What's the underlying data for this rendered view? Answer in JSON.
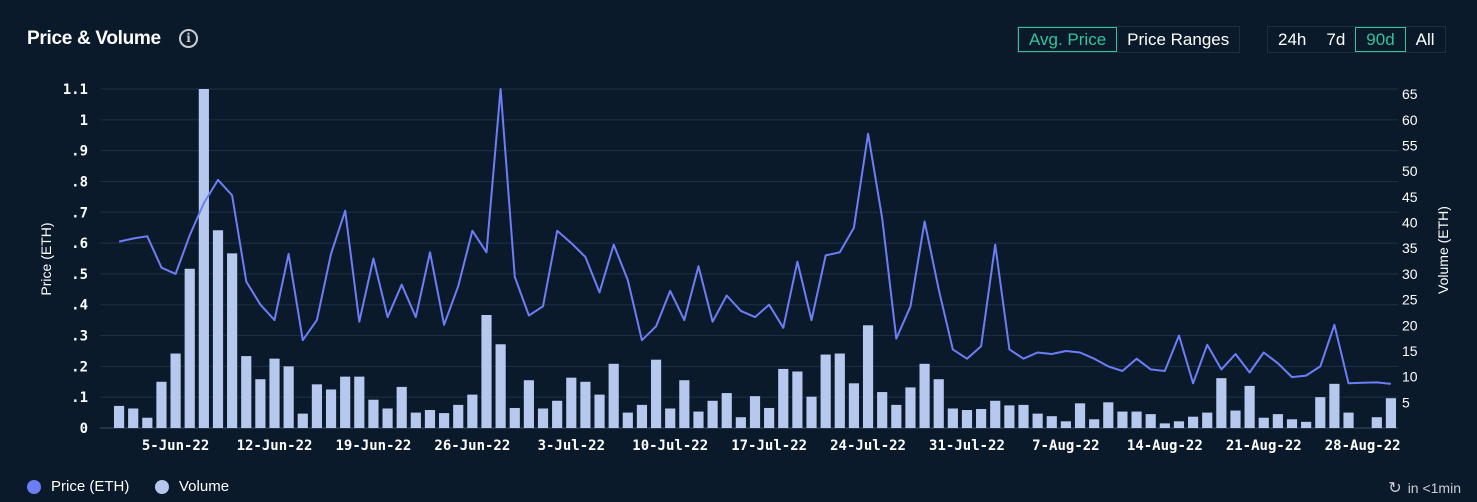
{
  "header": {
    "title": "Price & Volume",
    "info_icon": "info-icon"
  },
  "controls": {
    "metric_options": [
      {
        "label": "Avg. Price",
        "active": true
      },
      {
        "label": "Price Ranges",
        "active": false
      }
    ],
    "range_options": [
      {
        "label": "24h",
        "active": false
      },
      {
        "label": "7d",
        "active": false
      },
      {
        "label": "90d",
        "active": true
      },
      {
        "label": "All",
        "active": false
      }
    ]
  },
  "legend": {
    "price_label": "Price (ETH)",
    "volume_label": "Volume",
    "price_color": "#6c7ef5",
    "volume_color": "#b7c8ee"
  },
  "refresh": {
    "icon": "refresh-clock-icon",
    "text": "in <1min"
  },
  "chart_data": {
    "type": "bar+line",
    "ylabel_left": "Price (ETH)",
    "ylabel_right": "Volume (ETH)",
    "left_ticks": [
      "0",
      ".1",
      ".2",
      ".3",
      ".4",
      ".5",
      ".6",
      ".7",
      ".8",
      ".9",
      "1",
      "1.1"
    ],
    "left_range": [
      0,
      1.1
    ],
    "right_ticks": [
      "5",
      "10",
      "15",
      "20",
      "25",
      "30",
      "35",
      "40",
      "45",
      "50",
      "55",
      "60",
      "65"
    ],
    "right_range": [
      0,
      66
    ],
    "x_tick_labels": [
      "5-Jun-22",
      "12-Jun-22",
      "19-Jun-22",
      "26-Jun-22",
      "3-Jul-22",
      "10-Jul-22",
      "17-Jul-22",
      "24-Jul-22",
      "31-Jul-22",
      "7-Aug-22",
      "14-Aug-22",
      "21-Aug-22",
      "28-Aug-22"
    ],
    "x_tick_day_index": [
      4,
      11,
      18,
      25,
      32,
      39,
      46,
      53,
      60,
      67,
      74,
      81,
      88
    ],
    "grid": true,
    "series": [
      {
        "name": "Price (ETH)",
        "type": "line",
        "axis": "left",
        "values": [
          0.605,
          0.615,
          0.622,
          0.52,
          0.5,
          0.625,
          0.73,
          0.805,
          0.755,
          0.475,
          0.4,
          0.35,
          0.565,
          0.285,
          0.35,
          0.565,
          0.705,
          0.345,
          0.55,
          0.36,
          0.465,
          0.36,
          0.57,
          0.335,
          0.46,
          0.64,
          0.57,
          1.1,
          0.49,
          0.365,
          0.395,
          0.64,
          0.6,
          0.555,
          0.44,
          0.595,
          0.48,
          0.285,
          0.33,
          0.445,
          0.35,
          0.525,
          0.345,
          0.43,
          0.38,
          0.36,
          0.4,
          0.325,
          0.54,
          0.35,
          0.56,
          0.57,
          0.65,
          0.955,
          0.68,
          0.29,
          0.395,
          0.67,
          0.45,
          0.255,
          0.225,
          0.265,
          0.595,
          0.255,
          0.225,
          0.245,
          0.24,
          0.25,
          0.245,
          0.225,
          0.2,
          0.185,
          0.225,
          0.19,
          0.185,
          0.3,
          0.145,
          0.27,
          0.19,
          0.24,
          0.18,
          0.245,
          0.21,
          0.165,
          0.17,
          0.2,
          0.335,
          0.145,
          0.147,
          0.148,
          0.143
        ]
      },
      {
        "name": "Volume",
        "type": "bar",
        "axis": "right",
        "values": [
          4.3,
          3.8,
          2.0,
          9.0,
          14.5,
          31.0,
          66.0,
          38.5,
          34.0,
          14.0,
          9.5,
          13.5,
          12.0,
          2.8,
          8.5,
          7.5,
          10.0,
          10.0,
          5.5,
          3.8,
          8.0,
          3.0,
          3.5,
          2.9,
          4.5,
          6.5,
          22.0,
          16.3,
          3.9,
          9.3,
          3.8,
          5.3,
          9.8,
          9.0,
          6.5,
          12.5,
          3.0,
          4.5,
          13.3,
          3.8,
          9.3,
          3.2,
          5.3,
          6.8,
          2.1,
          6.2,
          3.9,
          11.5,
          11.0,
          6.1,
          14.3,
          14.5,
          8.7,
          20.0,
          7.0,
          4.5,
          7.9,
          12.5,
          9.5,
          3.8,
          3.5,
          3.7,
          5.3,
          4.4,
          4.5,
          2.8,
          2.3,
          1.3,
          4.8,
          1.7,
          5.0,
          3.2,
          3.2,
          2.7,
          0.9,
          1.3,
          2.2,
          3.0,
          9.7,
          3.4,
          8.2,
          2.0,
          2.7,
          1.7,
          1.2,
          6.0,
          8.6,
          3.0,
          0.0,
          2.1,
          5.8
        ]
      }
    ]
  }
}
